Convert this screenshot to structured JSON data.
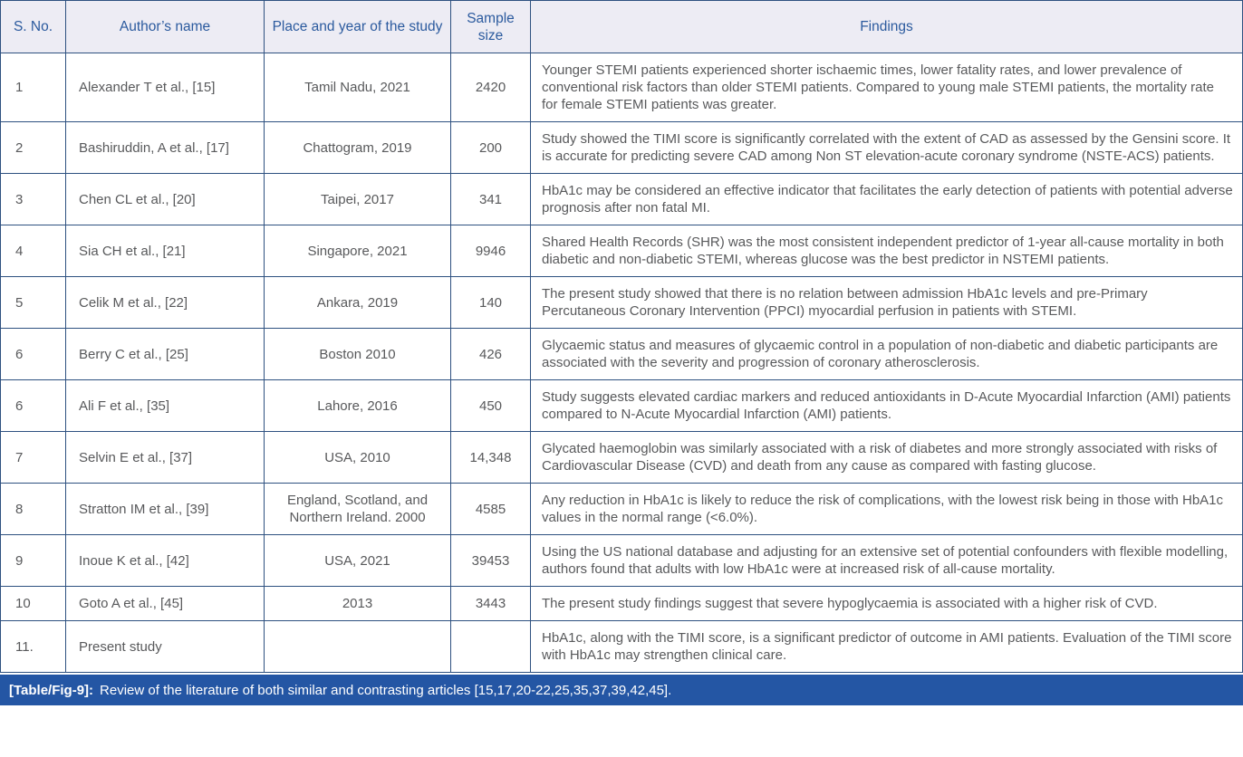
{
  "table": {
    "columns": [
      {
        "key": "sno",
        "label": "S. No.",
        "align": "left"
      },
      {
        "key": "author",
        "label": "Author’s name",
        "align": "left"
      },
      {
        "key": "place",
        "label": "Place and year of the study",
        "align": "center"
      },
      {
        "key": "sample",
        "label": "Sample size",
        "align": "center"
      },
      {
        "key": "findings",
        "label": "Findings",
        "align": "left"
      }
    ],
    "rows": [
      {
        "sno": "1",
        "author": "Alexander T et al., [15]",
        "place": "Tamil Nadu, 2021",
        "sample": "2420",
        "findings": "Younger STEMI patients experienced shorter ischaemic times, lower fatality rates, and lower prevalence of conventional risk factors than older STEMI patients. Compared to young male STEMI patients, the mortality rate for female STEMI patients was greater."
      },
      {
        "sno": "2",
        "author": "Bashiruddin, A et al., [17]",
        "place": "Chattogram, 2019",
        "sample": "200",
        "findings": "Study showed the TIMI score is significantly correlated with the extent of CAD as assessed by the Gensini score. It is accurate for predicting severe CAD among Non ST elevation-acute coronary syndrome (NSTE-ACS) patients."
      },
      {
        "sno": "3",
        "author": "Chen CL et al., [20]",
        "place": "Taipei, 2017",
        "sample": "341",
        "findings": "HbA1c may be considered an effective indicator that facilitates the early detection of patients with potential adverse prognosis after non fatal MI."
      },
      {
        "sno": "4",
        "author": "Sia CH et al., [21]",
        "place": "Singapore, 2021",
        "sample": "9946",
        "findings": "Shared Health Records (SHR) was the most consistent independent predictor of 1-year all-cause mortality in both diabetic and non-diabetic STEMI, whereas glucose was the best predictor in NSTEMI patients."
      },
      {
        "sno": "5",
        "author": "Celik M et al., [22]",
        "place": "Ankara, 2019",
        "sample": "140",
        "findings": "The present study showed that there is no relation between admission HbA1c levels and pre-Primary Percutaneous Coronary Intervention (PPCI) myocardial perfusion in patients with STEMI."
      },
      {
        "sno": "6",
        "author": "Berry C et al., [25]",
        "place": "Boston 2010",
        "sample": "426",
        "findings": "Glycaemic status and measures of glycaemic control in a population of non-diabetic and diabetic participants are associated with the severity and progression of coronary atherosclerosis."
      },
      {
        "sno": "6",
        "author": "Ali F et al., [35]",
        "place": "Lahore, 2016",
        "sample": "450",
        "findings": "Study suggests elevated cardiac markers and reduced antioxidants in D-Acute Myocardial Infarction (AMI) patients compared to N-Acute Myocardial Infarction (AMI) patients."
      },
      {
        "sno": "7",
        "author": "Selvin E et al., [37]",
        "place": "USA, 2010",
        "sample": "14,348",
        "findings": "Glycated haemoglobin was similarly associated with a risk of diabetes and more strongly associated with risks of Cardiovascular Disease (CVD) and death from any cause as compared with fasting glucose."
      },
      {
        "sno": "8",
        "author": "Stratton IM et al., [39]",
        "place": "England, Scotland, and Northern Ireland. 2000",
        "sample": "4585",
        "findings": "Any reduction in HbA1c is likely to reduce the risk of complications, with the lowest risk being in those with HbA1c values in the normal range (<6.0%)."
      },
      {
        "sno": "9",
        "author": "Inoue K et al., [42]",
        "place": "USA, 2021",
        "sample": "39453",
        "findings": "Using the US national database and adjusting for an extensive set of potential confounders with flexible modelling, authors found that adults with low HbA1c were at increased risk of all-cause mortality."
      },
      {
        "sno": "10",
        "author": "Goto A et al., [45]",
        "place": "2013",
        "sample": "3443",
        "findings": "The present study findings suggest that severe hypoglycaemia is associated with a higher risk of CVD."
      },
      {
        "sno": "11.",
        "author": "Present study",
        "place": "",
        "sample": "",
        "findings": "HbA1c, along with the TIMI score, is a significant predictor of outcome in AMI patients. Evaluation of the TIMI score with HbA1c may strengthen clinical care."
      }
    ]
  },
  "caption": {
    "tag": "[Table/Fig-9]:",
    "text": "Review of the literature of both similar and contrasting articles [15,17,20-22,25,35,37,39,42,45]."
  },
  "colors": {
    "border": "#2e5180",
    "header_bg": "#edecf4",
    "header_text": "#2b5a9e",
    "body_text": "#58595b",
    "caption_bg": "#2456a4",
    "caption_text": "#ffffff"
  }
}
